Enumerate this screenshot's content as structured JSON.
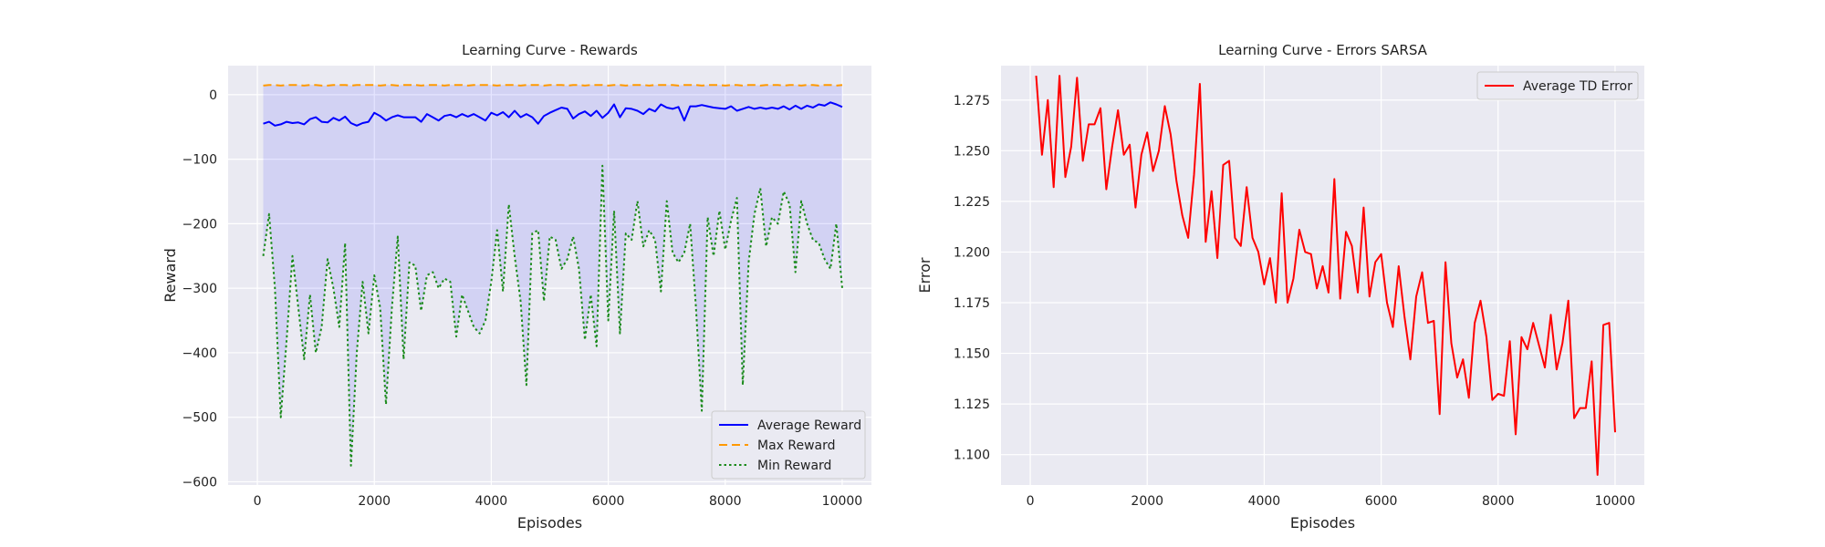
{
  "chart_data": [
    {
      "type": "line",
      "title": "Learning Curve - Rewards",
      "xlabel": "Episodes",
      "ylabel": "Reward",
      "xlim": [
        -500,
        10500
      ],
      "ylim": [
        -605,
        45
      ],
      "xticks": [
        0,
        2000,
        4000,
        6000,
        8000,
        10000
      ],
      "yticks": [
        0,
        -100,
        -200,
        -300,
        -400,
        -500,
        -600
      ],
      "grid": true,
      "legend_position": "bottom-right",
      "fill_between": "Max Reward and Min Reward",
      "x": [
        100,
        200,
        300,
        400,
        500,
        600,
        700,
        800,
        900,
        1000,
        1100,
        1200,
        1300,
        1400,
        1500,
        1600,
        1700,
        1800,
        1900,
        2000,
        2100,
        2200,
        2300,
        2400,
        2500,
        2600,
        2700,
        2800,
        2900,
        3000,
        3100,
        3200,
        3300,
        3400,
        3500,
        3600,
        3700,
        3800,
        3900,
        4000,
        4100,
        4200,
        4300,
        4400,
        4500,
        4600,
        4700,
        4800,
        4900,
        5000,
        5100,
        5200,
        5300,
        5400,
        5500,
        5600,
        5700,
        5800,
        5900,
        6000,
        6100,
        6200,
        6300,
        6400,
        6500,
        6600,
        6700,
        6800,
        6900,
        7000,
        7100,
        7200,
        7300,
        7400,
        7500,
        7600,
        7700,
        7800,
        7900,
        8000,
        8100,
        8200,
        8300,
        8400,
        8500,
        8600,
        8700,
        8800,
        8900,
        9000,
        9100,
        9200,
        9300,
        9400,
        9500,
        9600,
        9700,
        9800,
        9900,
        10000
      ],
      "series": [
        {
          "name": "Average Reward",
          "color": "#0000ff",
          "style": "solid",
          "values": [
            -45,
            -42,
            -48,
            -46,
            -42,
            -44,
            -43,
            -46,
            -38,
            -35,
            -42,
            -43,
            -36,
            -40,
            -34,
            -44,
            -48,
            -44,
            -42,
            -28,
            -33,
            -40,
            -35,
            -32,
            -35,
            -35,
            -35,
            -42,
            -30,
            -35,
            -40,
            -33,
            -31,
            -35,
            -30,
            -34,
            -30,
            -35,
            -40,
            -28,
            -32,
            -27,
            -35,
            -25,
            -35,
            -30,
            -35,
            -45,
            -33,
            -28,
            -24,
            -20,
            -22,
            -37,
            -30,
            -26,
            -33,
            -25,
            -36,
            -28,
            -15,
            -35,
            -21,
            -22,
            -25,
            -30,
            -22,
            -26,
            -15,
            -20,
            -22,
            -19,
            -40,
            -18,
            -18,
            -16,
            -18,
            -20,
            -21,
            -22,
            -18,
            -25,
            -22,
            -19,
            -22,
            -20,
            -22,
            -20,
            -22,
            -18,
            -23,
            -17,
            -22,
            -17,
            -20,
            -15,
            -17,
            -12,
            -15,
            -19
          ]
        },
        {
          "name": "Max Reward",
          "color": "#ff9900",
          "style": "dashed",
          "values": [
            14,
            15,
            15,
            14,
            15,
            15,
            15,
            14,
            15,
            15,
            14,
            14,
            15,
            15,
            15,
            14,
            15,
            15,
            15,
            15,
            14,
            15,
            15,
            14,
            15,
            15,
            15,
            14,
            15,
            15,
            15,
            14,
            15,
            15,
            15,
            14,
            15,
            15,
            15,
            15,
            14,
            15,
            15,
            15,
            14,
            15,
            15,
            15,
            14,
            15,
            15,
            15,
            14,
            15,
            15,
            14,
            15,
            15,
            15,
            14,
            15,
            15,
            14,
            15,
            15,
            15,
            14,
            15,
            15,
            15,
            15,
            14,
            15,
            15,
            15,
            14,
            15,
            15,
            15,
            14,
            15,
            15,
            14,
            15,
            15,
            14,
            15,
            15,
            15,
            14,
            15,
            15,
            14,
            15,
            15,
            14,
            15,
            15,
            14,
            15
          ]
        },
        {
          "name": "Min Reward",
          "color": "#1a8a1a",
          "style": "dotted",
          "values": [
            -250,
            -185,
            -300,
            -500,
            -380,
            -250,
            -330,
            -410,
            -310,
            -400,
            -360,
            -255,
            -300,
            -360,
            -230,
            -575,
            -400,
            -290,
            -370,
            -280,
            -330,
            -480,
            -330,
            -220,
            -410,
            -260,
            -265,
            -335,
            -280,
            -275,
            -300,
            -285,
            -290,
            -375,
            -310,
            -335,
            -360,
            -370,
            -350,
            -290,
            -210,
            -305,
            -170,
            -250,
            -320,
            -450,
            -215,
            -210,
            -320,
            -220,
            -225,
            -270,
            -255,
            -220,
            -270,
            -380,
            -310,
            -390,
            -110,
            -350,
            -180,
            -370,
            -215,
            -225,
            -165,
            -235,
            -210,
            -225,
            -305,
            -165,
            -245,
            -260,
            -245,
            -200,
            -330,
            -490,
            -190,
            -250,
            -180,
            -240,
            -195,
            -160,
            -450,
            -260,
            -185,
            -145,
            -235,
            -190,
            -200,
            -150,
            -170,
            -275,
            -165,
            -200,
            -225,
            -230,
            -255,
            -270,
            -200,
            -300
          ]
        }
      ]
    },
    {
      "type": "line",
      "title": "Learning Curve - Errors SARSA",
      "xlabel": "Episodes",
      "ylabel": "Error",
      "xlim": [
        -500,
        10500
      ],
      "ylim": [
        1.085,
        1.292
      ],
      "xticks": [
        0,
        2000,
        4000,
        6000,
        8000,
        10000
      ],
      "yticks": [
        1.1,
        1.125,
        1.15,
        1.175,
        1.2,
        1.225,
        1.25,
        1.275
      ],
      "ytick_labels": [
        "1.100",
        "1.125",
        "1.150",
        "1.175",
        "1.200",
        "1.225",
        "1.250",
        "1.275"
      ],
      "grid": true,
      "legend_position": "top-right",
      "x": [
        100,
        200,
        300,
        400,
        500,
        600,
        700,
        800,
        900,
        1000,
        1100,
        1200,
        1300,
        1400,
        1500,
        1600,
        1700,
        1800,
        1900,
        2000,
        2100,
        2200,
        2300,
        2400,
        2500,
        2600,
        2700,
        2800,
        2900,
        3000,
        3100,
        3200,
        3300,
        3400,
        3500,
        3600,
        3700,
        3800,
        3900,
        4000,
        4100,
        4200,
        4300,
        4400,
        4500,
        4600,
        4700,
        4800,
        4900,
        5000,
        5100,
        5200,
        5300,
        5400,
        5500,
        5600,
        5700,
        5800,
        5900,
        6000,
        6100,
        6200,
        6300,
        6400,
        6500,
        6600,
        6700,
        6800,
        6900,
        7000,
        7100,
        7200,
        7300,
        7400,
        7500,
        7600,
        7700,
        7800,
        7900,
        8000,
        8100,
        8200,
        8300,
        8400,
        8500,
        8600,
        8700,
        8800,
        8900,
        9000,
        9100,
        9200,
        9300,
        9400,
        9500,
        9600,
        9700,
        9800,
        9900,
        10000
      ],
      "series": [
        {
          "name": "Average TD Error",
          "color": "#ff0000",
          "style": "solid",
          "values": [
            1.287,
            1.248,
            1.275,
            1.232,
            1.287,
            1.237,
            1.252,
            1.286,
            1.245,
            1.263,
            1.263,
            1.271,
            1.231,
            1.252,
            1.27,
            1.248,
            1.253,
            1.222,
            1.248,
            1.259,
            1.24,
            1.25,
            1.272,
            1.258,
            1.235,
            1.218,
            1.207,
            1.238,
            1.283,
            1.205,
            1.23,
            1.197,
            1.243,
            1.245,
            1.207,
            1.203,
            1.232,
            1.207,
            1.2,
            1.184,
            1.197,
            1.175,
            1.229,
            1.175,
            1.187,
            1.211,
            1.2,
            1.199,
            1.182,
            1.193,
            1.18,
            1.236,
            1.177,
            1.21,
            1.203,
            1.18,
            1.222,
            1.178,
            1.195,
            1.199,
            1.175,
            1.163,
            1.193,
            1.168,
            1.147,
            1.178,
            1.19,
            1.165,
            1.166,
            1.12,
            1.195,
            1.155,
            1.138,
            1.147,
            1.128,
            1.165,
            1.176,
            1.158,
            1.127,
            1.13,
            1.129,
            1.156,
            1.11,
            1.158,
            1.152,
            1.165,
            1.154,
            1.143,
            1.169,
            1.142,
            1.155,
            1.176,
            1.118,
            1.123,
            1.123,
            1.146,
            1.09,
            1.164,
            1.165,
            1.111
          ]
        }
      ]
    }
  ]
}
